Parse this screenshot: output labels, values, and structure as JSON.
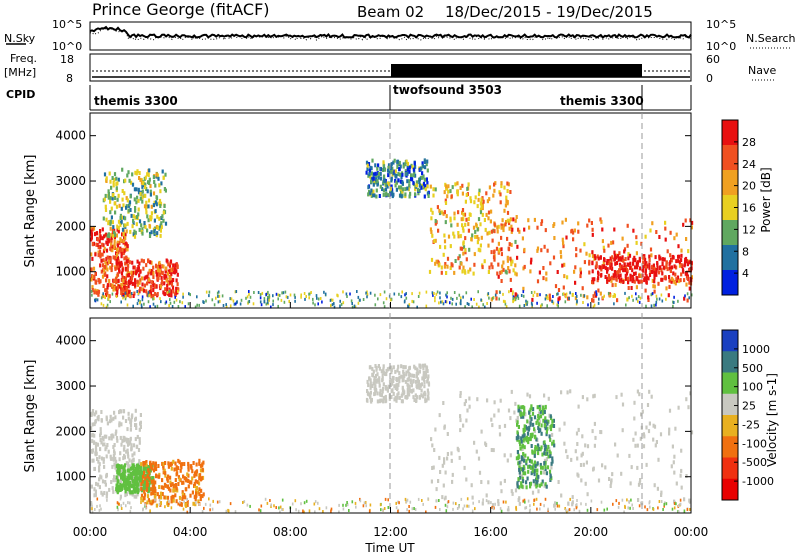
{
  "header": {
    "station": "Prince George (fitACF)",
    "beam": "Beam 02",
    "dates": "18/Dec/2015 - 19/Dec/2015"
  },
  "noise_panel": {
    "left_label": "N.Sky",
    "right_label": "N.Search",
    "left_ticks": [
      "10^5",
      "10^0"
    ],
    "right_ticks": [
      "10^5",
      "10^0"
    ]
  },
  "freq_panel": {
    "left_label_1": "Freq.",
    "left_label_2": "[MHz]",
    "left_ticks": [
      "18",
      "8"
    ],
    "right_label": "Nave",
    "right_ticks": [
      "60",
      "0"
    ]
  },
  "cpid_panel": {
    "label": "CPID",
    "modes": [
      {
        "name": "themis 3300",
        "start_hour": 0
      },
      {
        "name": "twofsound 3503",
        "start_hour": 12
      },
      {
        "name": "themis 3300",
        "start_hour": 22
      }
    ]
  },
  "power_colorbar": {
    "label": "Power [dB]",
    "ticks": [
      "28",
      "24",
      "20",
      "16",
      "12",
      "8",
      "4"
    ],
    "colors": [
      "#e81010",
      "#f05020",
      "#f0a020",
      "#e8d020",
      "#60a860",
      "#2070a0",
      "#0020e0"
    ]
  },
  "velocity_colorbar": {
    "label": "Velocity [m s-1]",
    "ticks": [
      "1000",
      "500",
      "100",
      "25",
      "-25",
      "-100",
      "-500",
      "-1000"
    ],
    "colors": [
      "#1a40c0",
      "#3a7a80",
      "#60c040",
      "#c8c8c0",
      "#e8b020",
      "#f07010",
      "#f03010",
      "#e80000"
    ]
  },
  "axes": {
    "ylabel": "Slant Range [km]",
    "xlabel": "Time UT",
    "yticks": [
      "4000",
      "3000",
      "2000",
      "1000"
    ],
    "xticks": [
      "00:00",
      "04:00",
      "08:00",
      "12:00",
      "16:00",
      "20:00",
      "00:00"
    ]
  },
  "chart_data": [
    {
      "type": "heatmap",
      "title": "Power [dB]",
      "xlabel": "Time UT",
      "ylabel": "Slant Range [km]",
      "xlim": [
        0,
        24
      ],
      "ylim": [
        200,
        4500
      ],
      "zlim": [
        0,
        30
      ],
      "echo_regions": [
        {
          "t_start": 0.0,
          "t_end": 1.5,
          "r_start": 500,
          "r_end": 2000,
          "power_db": 24
        },
        {
          "t_start": 1.0,
          "t_end": 3.5,
          "r_start": 500,
          "r_end": 1300,
          "power_db": 26
        },
        {
          "t_start": 0.5,
          "t_end": 3.0,
          "r_start": 1800,
          "r_end": 3300,
          "power_db": 12
        },
        {
          "t_start": 11.0,
          "t_end": 13.5,
          "r_start": 2700,
          "r_end": 3500,
          "power_db": 8
        },
        {
          "t_start": 13.5,
          "t_end": 17.0,
          "r_start": 1000,
          "r_end": 3000,
          "power_db": 18
        },
        {
          "t_start": 16.0,
          "t_end": 24.0,
          "r_start": 400,
          "r_end": 2200,
          "power_db": 22
        },
        {
          "t_start": 20.0,
          "t_end": 24.0,
          "r_start": 800,
          "r_end": 1400,
          "power_db": 28
        }
      ]
    },
    {
      "type": "heatmap",
      "title": "Velocity [m s-1]",
      "xlabel": "Time UT",
      "ylabel": "Slant Range [km]",
      "xlim": [
        0,
        24
      ],
      "ylim": [
        200,
        4500
      ],
      "zlim": [
        -1000,
        1000
      ],
      "echo_regions": [
        {
          "t_start": 0.0,
          "t_end": 2.0,
          "r_start": 600,
          "r_end": 2500,
          "velocity": 0
        },
        {
          "t_start": 1.0,
          "t_end": 2.5,
          "r_start": 700,
          "r_end": 1300,
          "velocity": 100
        },
        {
          "t_start": 2.0,
          "t_end": 4.5,
          "r_start": 400,
          "r_end": 1400,
          "velocity": -100
        },
        {
          "t_start": 11.0,
          "t_end": 13.5,
          "r_start": 2700,
          "r_end": 3500,
          "velocity": 0
        },
        {
          "t_start": 13.5,
          "t_end": 24.0,
          "r_start": 400,
          "r_end": 3000,
          "velocity": 0
        },
        {
          "t_start": 17.0,
          "t_end": 18.5,
          "r_start": 800,
          "r_end": 2600,
          "velocity": 300
        }
      ]
    }
  ]
}
